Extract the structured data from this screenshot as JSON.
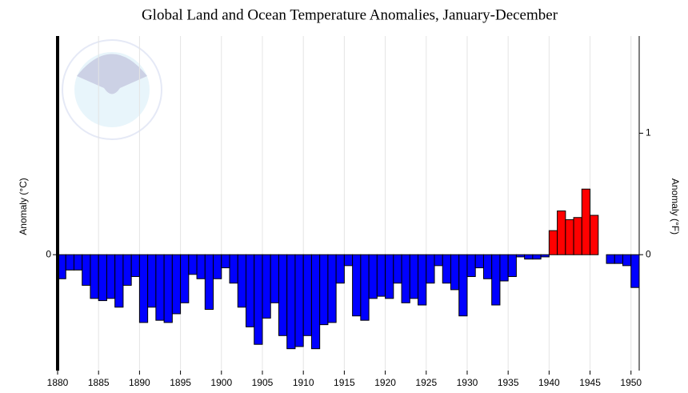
{
  "chart_data": {
    "type": "bar",
    "title": "Global Land and Ocean Temperature Anomalies, January-December",
    "y_label": "Anomaly (°C)",
    "y2_label": "Anomaly (°F)",
    "x": [
      1880,
      1881,
      1882,
      1883,
      1884,
      1885,
      1886,
      1887,
      1888,
      1889,
      1890,
      1891,
      1892,
      1893,
      1894,
      1895,
      1896,
      1897,
      1898,
      1899,
      1900,
      1901,
      1902,
      1903,
      1904,
      1905,
      1906,
      1907,
      1908,
      1909,
      1910,
      1911,
      1912,
      1913,
      1914,
      1915,
      1916,
      1917,
      1918,
      1919,
      1920,
      1921,
      1922,
      1923,
      1924,
      1925,
      1926,
      1927,
      1928,
      1929,
      1930,
      1931,
      1932,
      1933,
      1934,
      1935,
      1936,
      1937,
      1938,
      1939,
      1940,
      1941,
      1942,
      1943,
      1944,
      1945,
      1946,
      1947,
      1948,
      1949,
      1950
    ],
    "values": [
      -0.11,
      -0.07,
      -0.07,
      -0.14,
      -0.2,
      -0.21,
      -0.2,
      -0.24,
      -0.14,
      -0.1,
      -0.31,
      -0.24,
      -0.3,
      -0.31,
      -0.27,
      -0.22,
      -0.09,
      -0.11,
      -0.25,
      -0.11,
      -0.06,
      -0.13,
      -0.24,
      -0.33,
      -0.41,
      -0.29,
      -0.22,
      -0.37,
      -0.43,
      -0.42,
      -0.37,
      -0.43,
      -0.32,
      -0.31,
      -0.13,
      -0.05,
      -0.28,
      -0.3,
      -0.2,
      -0.19,
      -0.2,
      -0.13,
      -0.22,
      -0.2,
      -0.23,
      -0.13,
      -0.05,
      -0.13,
      -0.16,
      -0.28,
      -0.1,
      -0.06,
      -0.11,
      -0.23,
      -0.12,
      -0.1,
      -0.01,
      -0.02,
      -0.02,
      -0.01,
      0.11,
      0.2,
      0.16,
      0.17,
      0.3,
      0.18,
      0,
      -0.04,
      -0.04,
      -0.05,
      -0.15
    ],
    "positive_color": "#ff0000",
    "negative_color": "#0000ff",
    "xlim": [
      1880,
      1951
    ],
    "xticks": [
      1880,
      1885,
      1890,
      1895,
      1900,
      1905,
      1910,
      1915,
      1920,
      1925,
      1930,
      1935,
      1940,
      1945,
      1950
    ],
    "ylim": [
      -0.53,
      1.0
    ],
    "yticks": [
      0
    ],
    "y2lim": [
      -0.954,
      1.8
    ],
    "y2ticks": [
      0,
      1
    ],
    "grid": true
  }
}
